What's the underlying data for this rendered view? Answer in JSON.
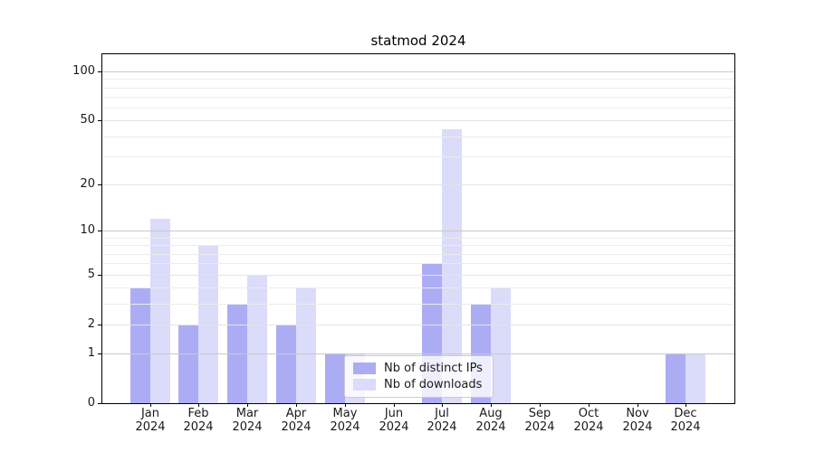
{
  "title": "statmod 2024",
  "chart_data": {
    "type": "bar",
    "title": "statmod 2024",
    "months": [
      "Jan",
      "Feb",
      "Mar",
      "Apr",
      "May",
      "Jun",
      "Jul",
      "Aug",
      "Sep",
      "Oct",
      "Nov",
      "Dec"
    ],
    "year": "2024",
    "series": [
      {
        "name": "Nb of distinct IPs",
        "color": "#acacf4",
        "values": [
          4,
          2,
          3,
          2,
          1,
          0,
          6,
          3,
          0,
          0,
          0,
          1
        ]
      },
      {
        "name": "Nb of downloads",
        "color": "#dbdbfa",
        "values": [
          12,
          8,
          5,
          4,
          1,
          0,
          44,
          4,
          0,
          0,
          0,
          1
        ]
      }
    ],
    "yscale": "log1p",
    "ylim": [
      0,
      128
    ],
    "yticks": [
      0,
      1,
      2,
      5,
      10,
      20,
      50,
      100
    ],
    "minor_yticks": [
      3,
      4,
      6,
      7,
      8,
      9,
      30,
      40,
      60,
      70,
      80,
      90
    ],
    "grid": true,
    "legend_position": "lower-center"
  },
  "colors": {
    "grid_minor": "#ececec",
    "grid_major": "#e4e4e4",
    "grid_decade": "#c9c9c9",
    "axis": "#000000",
    "text": "#1a1a1a",
    "legend_border": "#cccccc"
  }
}
